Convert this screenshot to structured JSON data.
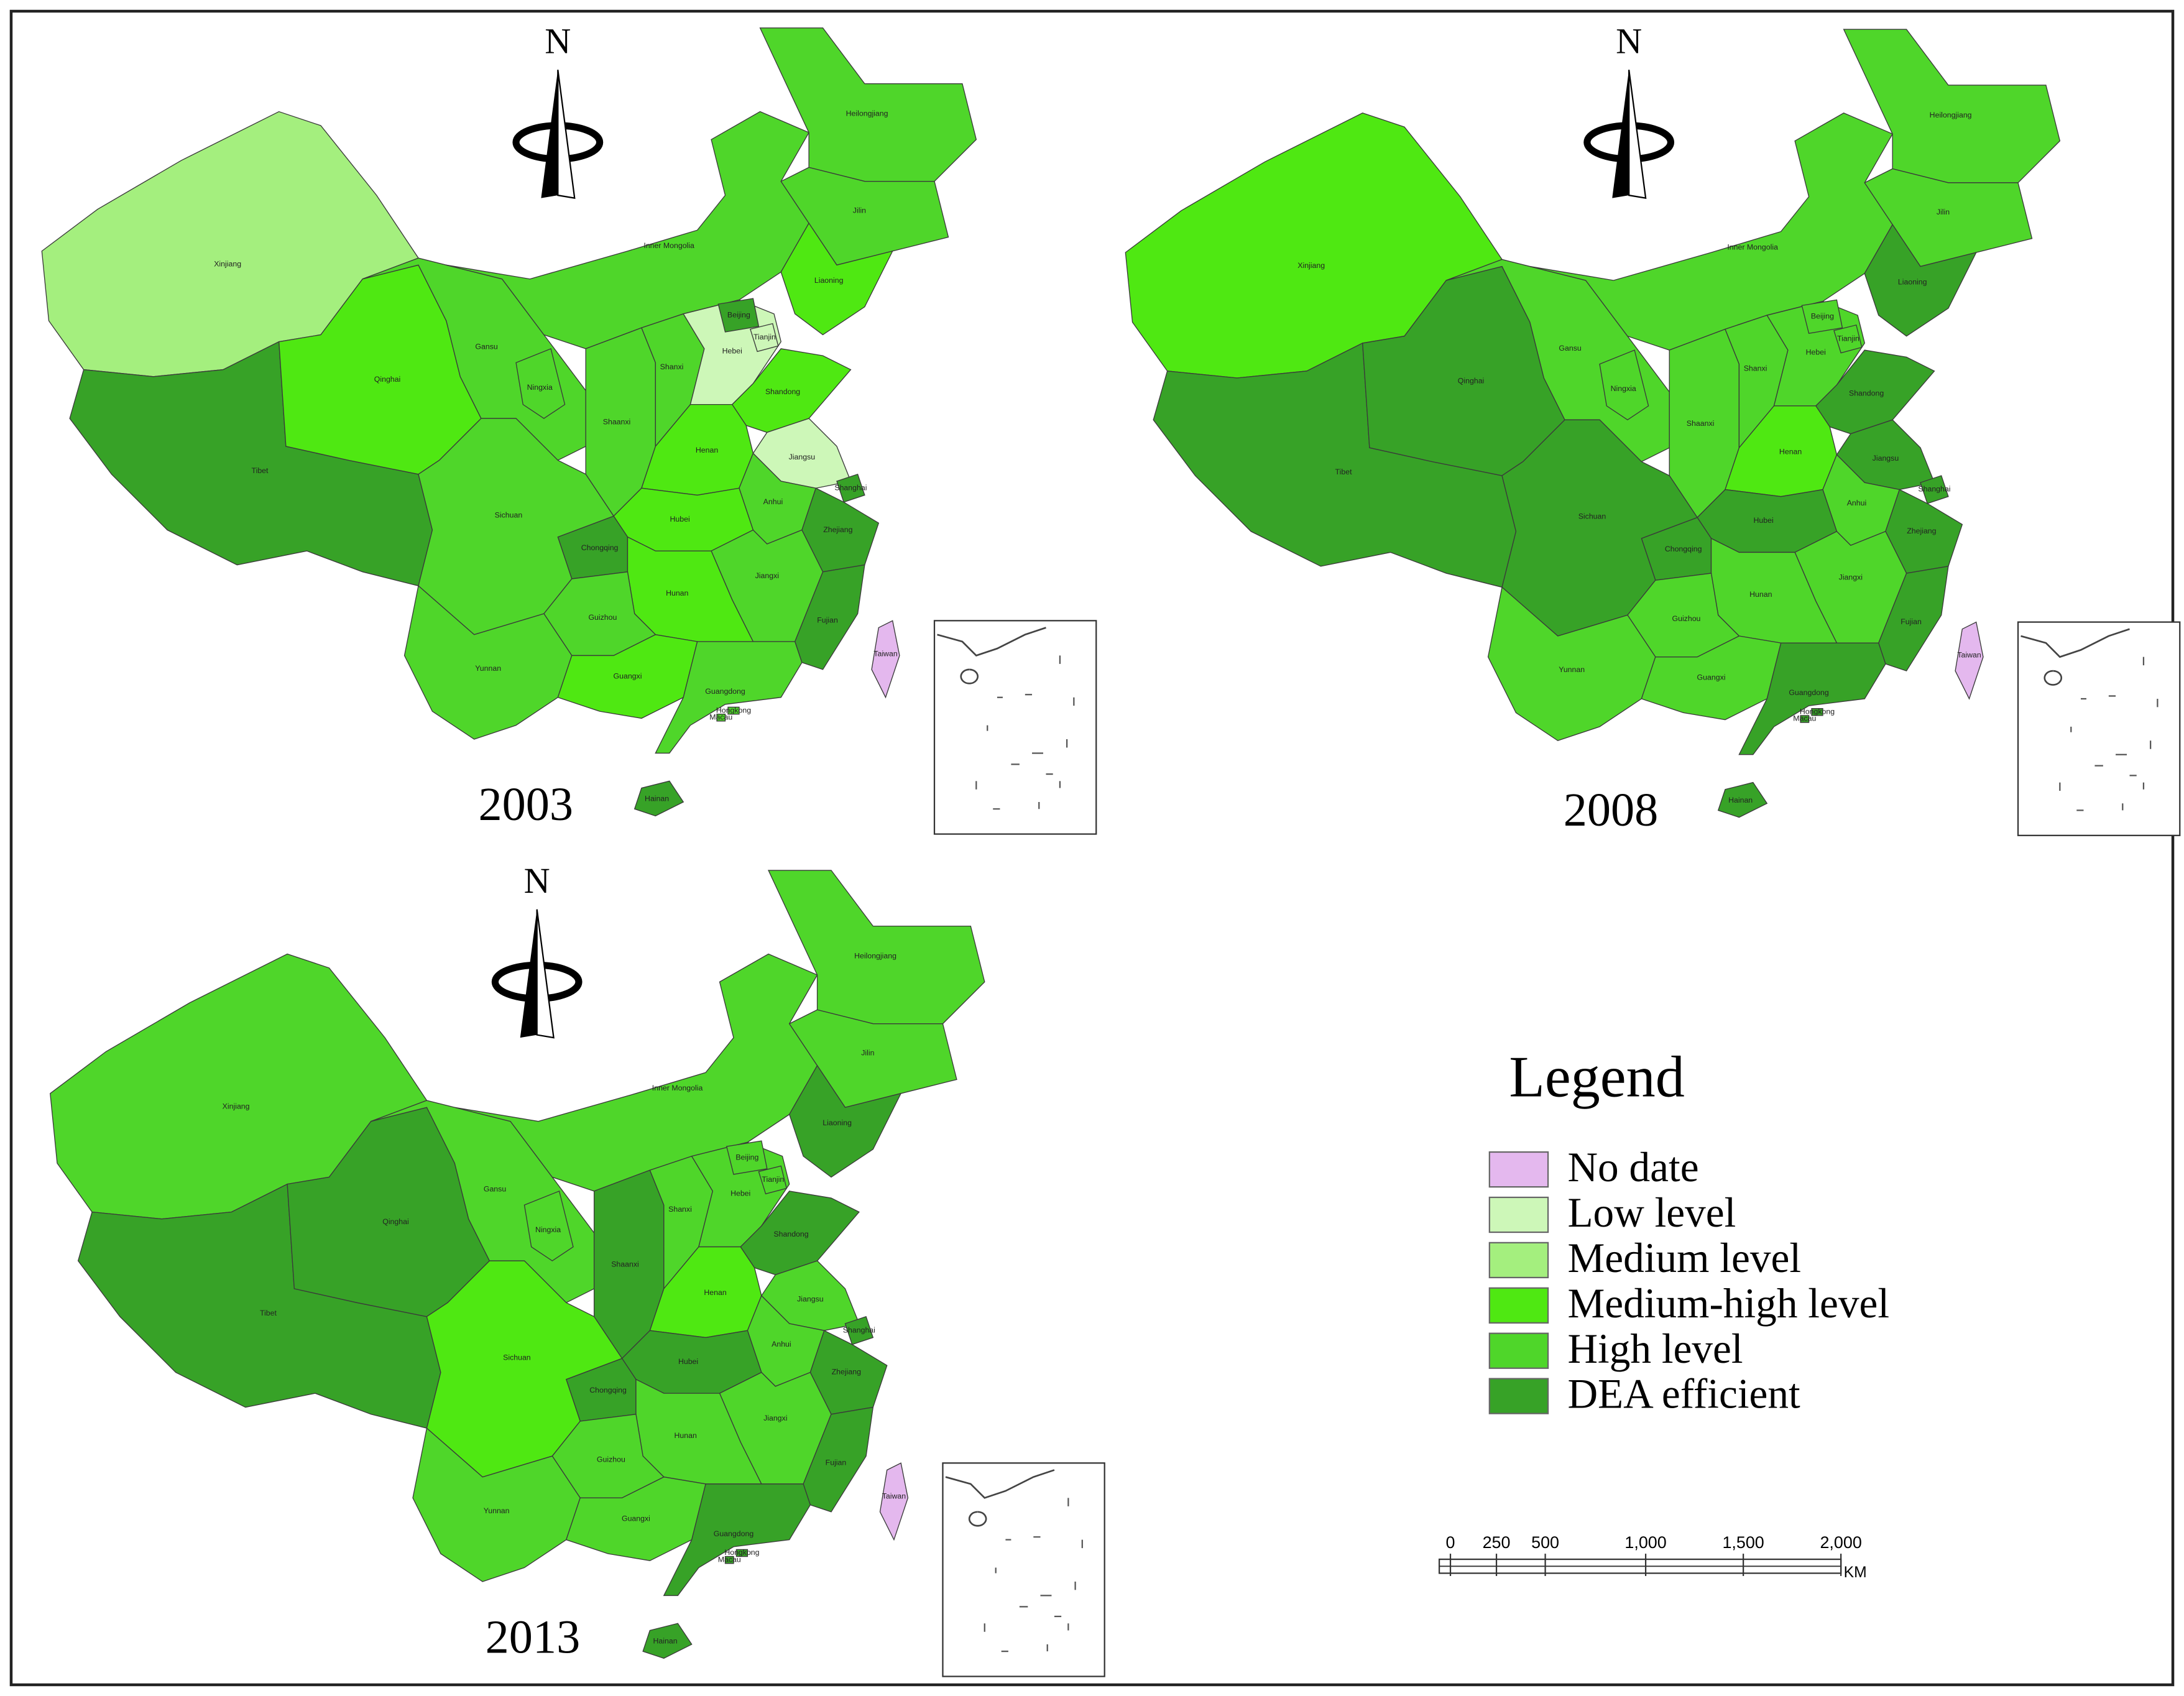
{
  "north": "N",
  "provinces": [
    "Xinjiang",
    "Tibet",
    "Qinghai",
    "Gansu",
    "Inner Mongolia",
    "Heilongjiang",
    "Jilin",
    "Liaoning",
    "Ningxia",
    "Shaanxi",
    "Shanxi",
    "Hebei",
    "Beijing",
    "Tianjin",
    "Shandong",
    "Henan",
    "Jiangsu",
    "Shanghai",
    "Anhui",
    "Hubei",
    "Chongqing",
    "Sichuan",
    "Zhejiang",
    "Jiangxi",
    "Fujian",
    "Hunan",
    "Guizhou",
    "Yunnan",
    "Guangxi",
    "Guangdong",
    "Hainan",
    "Taiwan",
    "Hongkong",
    "Macau"
  ],
  "maps": [
    {
      "year": "2003",
      "levels": [
        2,
        5,
        3,
        4,
        4,
        4,
        4,
        3,
        4,
        4,
        4,
        1,
        5,
        1,
        3,
        3,
        1,
        5,
        4,
        3,
        5,
        4,
        5,
        4,
        5,
        3,
        4,
        4,
        3,
        4,
        5,
        0,
        4,
        4
      ]
    },
    {
      "year": "2008",
      "levels": [
        3,
        5,
        5,
        4,
        4,
        4,
        4,
        5,
        4,
        4,
        4,
        4,
        4,
        4,
        5,
        3,
        5,
        5,
        4,
        5,
        5,
        5,
        5,
        4,
        5,
        4,
        4,
        4,
        4,
        5,
        5,
        0,
        5,
        5
      ]
    },
    {
      "year": "2013",
      "levels": [
        4,
        5,
        5,
        4,
        4,
        4,
        4,
        5,
        4,
        5,
        4,
        4,
        4,
        4,
        5,
        3,
        4,
        5,
        4,
        5,
        5,
        3,
        5,
        4,
        5,
        4,
        4,
        4,
        4,
        5,
        5,
        0,
        5,
        5
      ]
    }
  ],
  "legend": {
    "title": "Legend",
    "items": [
      {
        "label": "No date",
        "color": "#e4b8ee"
      },
      {
        "label": "Low level",
        "color": "#cdf7b8"
      },
      {
        "label": "Medium level",
        "color": "#a4ef7e"
      },
      {
        "label": "Medium-high level",
        "color": "#4fe812"
      },
      {
        "label": "High level",
        "color": "#4fd62a"
      },
      {
        "label": "DEA efficient",
        "color": "#37a227"
      }
    ]
  },
  "scale_bar": {
    "ticks": [
      "0",
      "250",
      "500",
      "1,000",
      "1,500",
      "2,000"
    ],
    "unit": "KM"
  }
}
